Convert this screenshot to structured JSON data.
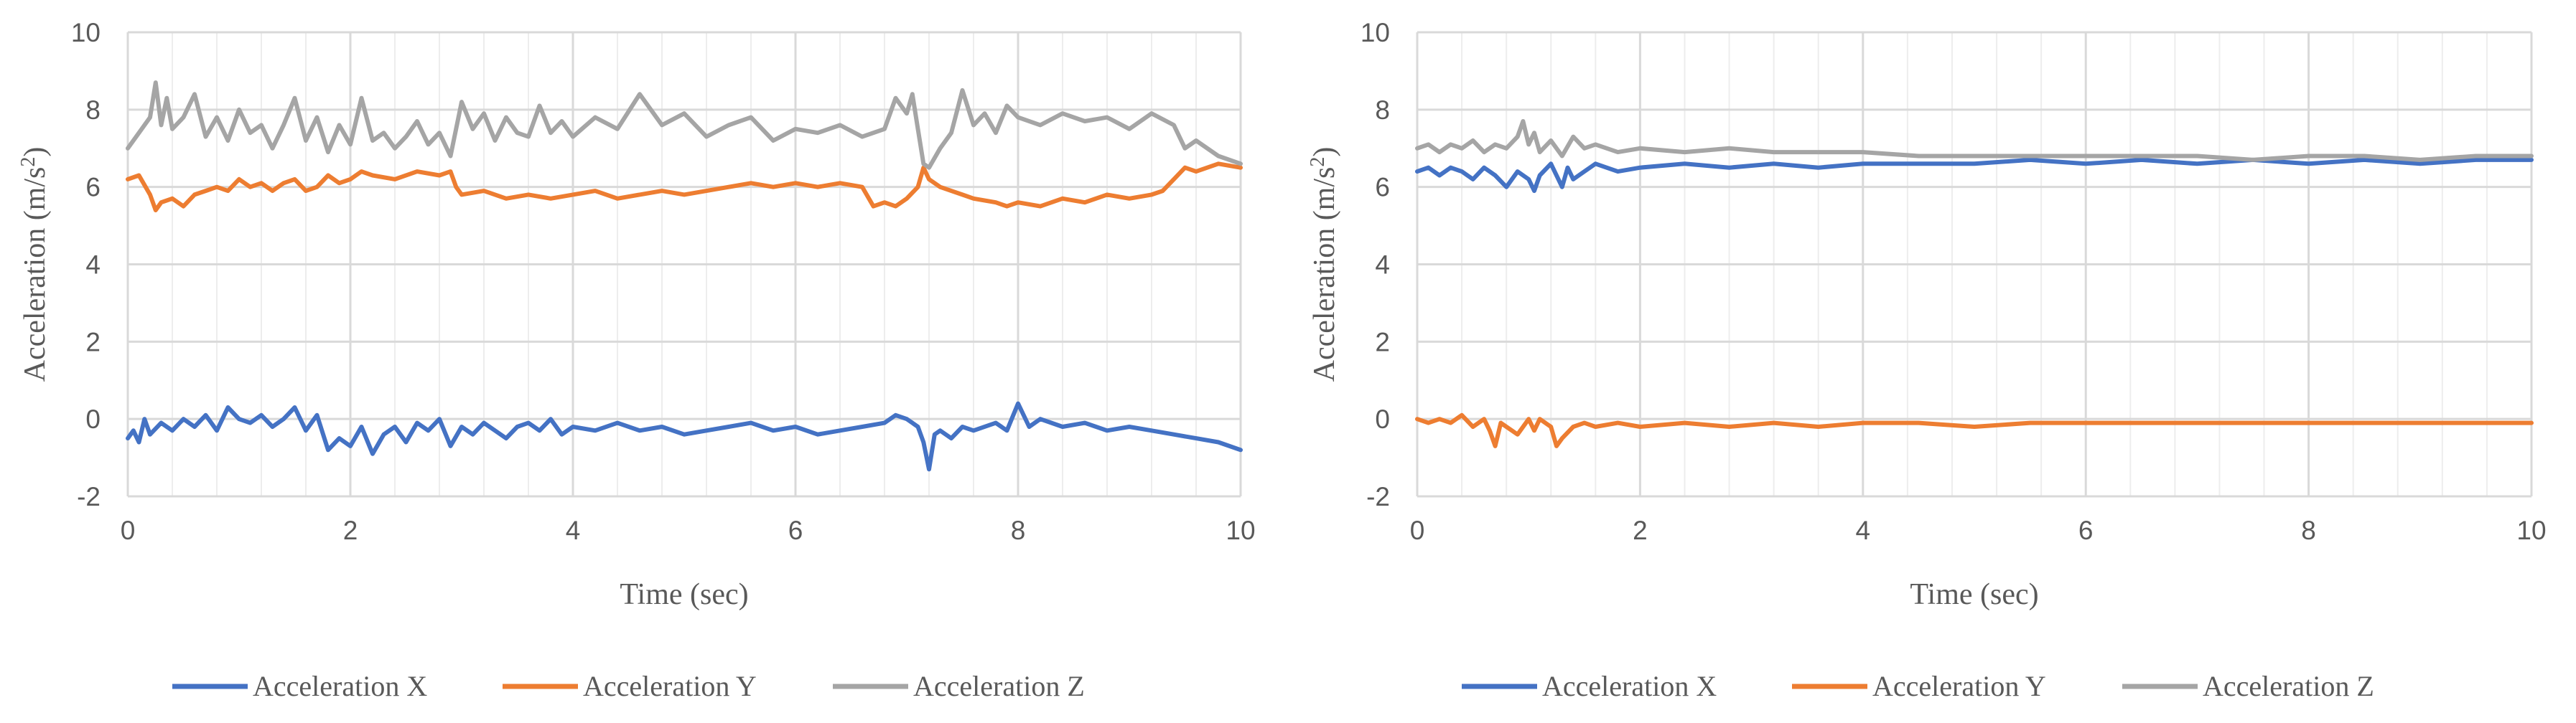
{
  "colors": {
    "x": "#4472C4",
    "y": "#ED7D31",
    "z": "#A5A5A5",
    "grid": "#D9D9D9",
    "text": "#595959"
  },
  "chart_data": [
    {
      "type": "line",
      "xlabel": "Time (sec)",
      "ylabel_prefix": "Acceleration (m/s",
      "ylabel_sup": "2",
      "ylabel_suffix": ")",
      "xlim": [
        0,
        10
      ],
      "ylim": [
        -2,
        10
      ],
      "xticks": [
        0,
        2,
        4,
        6,
        8,
        10
      ],
      "yticks": [
        -2,
        0,
        2,
        4,
        6,
        8,
        10
      ],
      "x_minor_step": 0.4,
      "legend": "bottom",
      "series": [
        {
          "name": "Acceleration X",
          "color_key": "x",
          "x": [
            0,
            0.05,
            0.1,
            0.15,
            0.2,
            0.3,
            0.4,
            0.5,
            0.6,
            0.7,
            0.8,
            0.9,
            1.0,
            1.1,
            1.2,
            1.3,
            1.4,
            1.5,
            1.6,
            1.7,
            1.8,
            1.9,
            2.0,
            2.1,
            2.2,
            2.3,
            2.4,
            2.5,
            2.6,
            2.7,
            2.8,
            2.9,
            3.0,
            3.1,
            3.2,
            3.3,
            3.4,
            3.5,
            3.6,
            3.7,
            3.8,
            3.9,
            4.0,
            4.2,
            4.4,
            4.6,
            4.8,
            5.0,
            5.2,
            5.4,
            5.6,
            5.8,
            6.0,
            6.2,
            6.4,
            6.6,
            6.8,
            6.9,
            7.0,
            7.1,
            7.15,
            7.2,
            7.25,
            7.3,
            7.4,
            7.5,
            7.6,
            7.8,
            7.9,
            8.0,
            8.1,
            8.2,
            8.4,
            8.6,
            8.8,
            9.0,
            9.2,
            9.4,
            9.6,
            9.8,
            10.0
          ],
          "y": [
            -0.5,
            -0.3,
            -0.6,
            0.0,
            -0.4,
            -0.1,
            -0.3,
            0.0,
            -0.2,
            0.1,
            -0.3,
            0.3,
            0.0,
            -0.1,
            0.1,
            -0.2,
            0.0,
            0.3,
            -0.3,
            0.1,
            -0.8,
            -0.5,
            -0.7,
            -0.2,
            -0.9,
            -0.4,
            -0.2,
            -0.6,
            -0.1,
            -0.3,
            0.0,
            -0.7,
            -0.2,
            -0.4,
            -0.1,
            -0.3,
            -0.5,
            -0.2,
            -0.1,
            -0.3,
            0.0,
            -0.4,
            -0.2,
            -0.3,
            -0.1,
            -0.3,
            -0.2,
            -0.4,
            -0.3,
            -0.2,
            -0.1,
            -0.3,
            -0.2,
            -0.4,
            -0.3,
            -0.2,
            -0.1,
            0.1,
            0.0,
            -0.2,
            -0.6,
            -1.3,
            -0.4,
            -0.3,
            -0.5,
            -0.2,
            -0.3,
            -0.1,
            -0.3,
            0.4,
            -0.2,
            0.0,
            -0.2,
            -0.1,
            -0.3,
            -0.2,
            -0.3,
            -0.4,
            -0.5,
            -0.6,
            -0.8
          ]
        },
        {
          "name": "Acceleration Y",
          "color_key": "y",
          "x": [
            0,
            0.1,
            0.2,
            0.25,
            0.3,
            0.4,
            0.5,
            0.6,
            0.7,
            0.8,
            0.9,
            1.0,
            1.1,
            1.2,
            1.3,
            1.4,
            1.5,
            1.6,
            1.7,
            1.8,
            1.9,
            2.0,
            2.1,
            2.2,
            2.4,
            2.6,
            2.8,
            2.9,
            2.95,
            3.0,
            3.2,
            3.4,
            3.6,
            3.8,
            4.0,
            4.2,
            4.4,
            4.6,
            4.8,
            5.0,
            5.2,
            5.4,
            5.6,
            5.8,
            6.0,
            6.2,
            6.4,
            6.6,
            6.7,
            6.8,
            6.9,
            7.0,
            7.1,
            7.15,
            7.2,
            7.3,
            7.4,
            7.5,
            7.6,
            7.8,
            7.9,
            8.0,
            8.2,
            8.4,
            8.6,
            8.8,
            9.0,
            9.2,
            9.3,
            9.4,
            9.5,
            9.6,
            9.8,
            10.0
          ],
          "y": [
            6.2,
            6.3,
            5.8,
            5.4,
            5.6,
            5.7,
            5.5,
            5.8,
            5.9,
            6.0,
            5.9,
            6.2,
            6.0,
            6.1,
            5.9,
            6.1,
            6.2,
            5.9,
            6.0,
            6.3,
            6.1,
            6.2,
            6.4,
            6.3,
            6.2,
            6.4,
            6.3,
            6.4,
            6.0,
            5.8,
            5.9,
            5.7,
            5.8,
            5.7,
            5.8,
            5.9,
            5.7,
            5.8,
            5.9,
            5.8,
            5.9,
            6.0,
            6.1,
            6.0,
            6.1,
            6.0,
            6.1,
            6.0,
            5.5,
            5.6,
            5.5,
            5.7,
            6.0,
            6.5,
            6.2,
            6.0,
            5.9,
            5.8,
            5.7,
            5.6,
            5.5,
            5.6,
            5.5,
            5.7,
            5.6,
            5.8,
            5.7,
            5.8,
            5.9,
            6.2,
            6.5,
            6.4,
            6.6,
            6.5
          ]
        },
        {
          "name": "Acceleration Z",
          "color_key": "z",
          "x": [
            0,
            0.1,
            0.2,
            0.25,
            0.3,
            0.35,
            0.4,
            0.5,
            0.6,
            0.7,
            0.8,
            0.9,
            1.0,
            1.1,
            1.2,
            1.3,
            1.4,
            1.5,
            1.6,
            1.7,
            1.8,
            1.9,
            2.0,
            2.1,
            2.2,
            2.3,
            2.4,
            2.5,
            2.6,
            2.7,
            2.8,
            2.9,
            3.0,
            3.1,
            3.2,
            3.3,
            3.4,
            3.5,
            3.6,
            3.7,
            3.8,
            3.9,
            4.0,
            4.2,
            4.4,
            4.6,
            4.8,
            5.0,
            5.2,
            5.4,
            5.6,
            5.8,
            6.0,
            6.2,
            6.4,
            6.6,
            6.8,
            6.9,
            7.0,
            7.05,
            7.1,
            7.15,
            7.2,
            7.3,
            7.4,
            7.5,
            7.6,
            7.7,
            7.8,
            7.9,
            8.0,
            8.2,
            8.4,
            8.6,
            8.8,
            9.0,
            9.2,
            9.4,
            9.5,
            9.6,
            9.8,
            10.0
          ],
          "y": [
            7.0,
            7.4,
            7.8,
            8.7,
            7.6,
            8.3,
            7.5,
            7.8,
            8.4,
            7.3,
            7.8,
            7.2,
            8.0,
            7.4,
            7.6,
            7.0,
            7.6,
            8.3,
            7.2,
            7.8,
            6.9,
            7.6,
            7.1,
            8.3,
            7.2,
            7.4,
            7.0,
            7.3,
            7.7,
            7.1,
            7.4,
            6.8,
            8.2,
            7.5,
            7.9,
            7.2,
            7.8,
            7.4,
            7.3,
            8.1,
            7.4,
            7.7,
            7.3,
            7.8,
            7.5,
            8.4,
            7.6,
            7.9,
            7.3,
            7.6,
            7.8,
            7.2,
            7.5,
            7.4,
            7.6,
            7.3,
            7.5,
            8.3,
            7.9,
            8.4,
            7.5,
            6.6,
            6.5,
            7.0,
            7.4,
            8.5,
            7.6,
            7.9,
            7.4,
            8.1,
            7.8,
            7.6,
            7.9,
            7.7,
            7.8,
            7.5,
            7.9,
            7.6,
            7.0,
            7.2,
            6.8,
            6.6
          ]
        }
      ]
    },
    {
      "type": "line",
      "xlabel": "Time (sec)",
      "ylabel_prefix": "Acceleration (m/s",
      "ylabel_sup": "2",
      "ylabel_suffix": ")",
      "xlim": [
        0,
        10
      ],
      "ylim": [
        -2,
        10
      ],
      "xticks": [
        0,
        2,
        4,
        6,
        8,
        10
      ],
      "yticks": [
        -2,
        0,
        2,
        4,
        6,
        8,
        10
      ],
      "x_minor_step": 0.4,
      "legend": "bottom",
      "series": [
        {
          "name": "Acceleration X",
          "color_key": "x",
          "x": [
            0,
            0.1,
            0.2,
            0.3,
            0.4,
            0.5,
            0.6,
            0.7,
            0.8,
            0.9,
            1.0,
            1.05,
            1.1,
            1.2,
            1.3,
            1.35,
            1.4,
            1.5,
            1.6,
            1.7,
            1.8,
            2.0,
            2.4,
            2.8,
            3.2,
            3.6,
            4.0,
            4.5,
            5.0,
            5.5,
            6.0,
            6.5,
            7.0,
            7.5,
            8.0,
            8.5,
            9.0,
            9.5,
            10.0
          ],
          "y": [
            6.4,
            6.5,
            6.3,
            6.5,
            6.4,
            6.2,
            6.5,
            6.3,
            6.0,
            6.4,
            6.2,
            5.9,
            6.3,
            6.6,
            6.0,
            6.5,
            6.2,
            6.4,
            6.6,
            6.5,
            6.4,
            6.5,
            6.6,
            6.5,
            6.6,
            6.5,
            6.6,
            6.6,
            6.6,
            6.7,
            6.6,
            6.7,
            6.6,
            6.7,
            6.6,
            6.7,
            6.6,
            6.7,
            6.7
          ]
        },
        {
          "name": "Acceleration Y",
          "color_key": "y",
          "x": [
            0,
            0.1,
            0.2,
            0.3,
            0.4,
            0.5,
            0.6,
            0.65,
            0.7,
            0.75,
            0.8,
            0.9,
            1.0,
            1.05,
            1.1,
            1.2,
            1.25,
            1.3,
            1.4,
            1.5,
            1.6,
            1.8,
            2.0,
            2.4,
            2.8,
            3.2,
            3.6,
            4.0,
            4.5,
            5.0,
            5.5,
            6.0,
            6.5,
            7.0,
            7.5,
            8.0,
            8.5,
            9.0,
            9.5,
            10.0
          ],
          "y": [
            0.0,
            -0.1,
            0.0,
            -0.1,
            0.1,
            -0.2,
            0.0,
            -0.3,
            -0.7,
            -0.1,
            -0.2,
            -0.4,
            0.0,
            -0.3,
            0.0,
            -0.2,
            -0.7,
            -0.5,
            -0.2,
            -0.1,
            -0.2,
            -0.1,
            -0.2,
            -0.1,
            -0.2,
            -0.1,
            -0.2,
            -0.1,
            -0.1,
            -0.2,
            -0.1,
            -0.1,
            -0.1,
            -0.1,
            -0.1,
            -0.1,
            -0.1,
            -0.1,
            -0.1,
            -0.1
          ]
        },
        {
          "name": "Acceleration Z",
          "color_key": "z",
          "x": [
            0,
            0.1,
            0.2,
            0.3,
            0.4,
            0.5,
            0.6,
            0.7,
            0.8,
            0.9,
            0.95,
            1.0,
            1.05,
            1.1,
            1.2,
            1.3,
            1.4,
            1.5,
            1.6,
            1.8,
            2.0,
            2.4,
            2.8,
            3.2,
            3.6,
            4.0,
            4.5,
            5.0,
            5.5,
            6.0,
            6.5,
            7.0,
            7.5,
            8.0,
            8.5,
            9.0,
            9.5,
            10.0
          ],
          "y": [
            7.0,
            7.1,
            6.9,
            7.1,
            7.0,
            7.2,
            6.9,
            7.1,
            7.0,
            7.3,
            7.7,
            7.1,
            7.4,
            6.9,
            7.2,
            6.8,
            7.3,
            7.0,
            7.1,
            6.9,
            7.0,
            6.9,
            7.0,
            6.9,
            6.9,
            6.9,
            6.8,
            6.8,
            6.8,
            6.8,
            6.8,
            6.8,
            6.7,
            6.8,
            6.8,
            6.7,
            6.8,
            6.8
          ]
        }
      ]
    }
  ]
}
